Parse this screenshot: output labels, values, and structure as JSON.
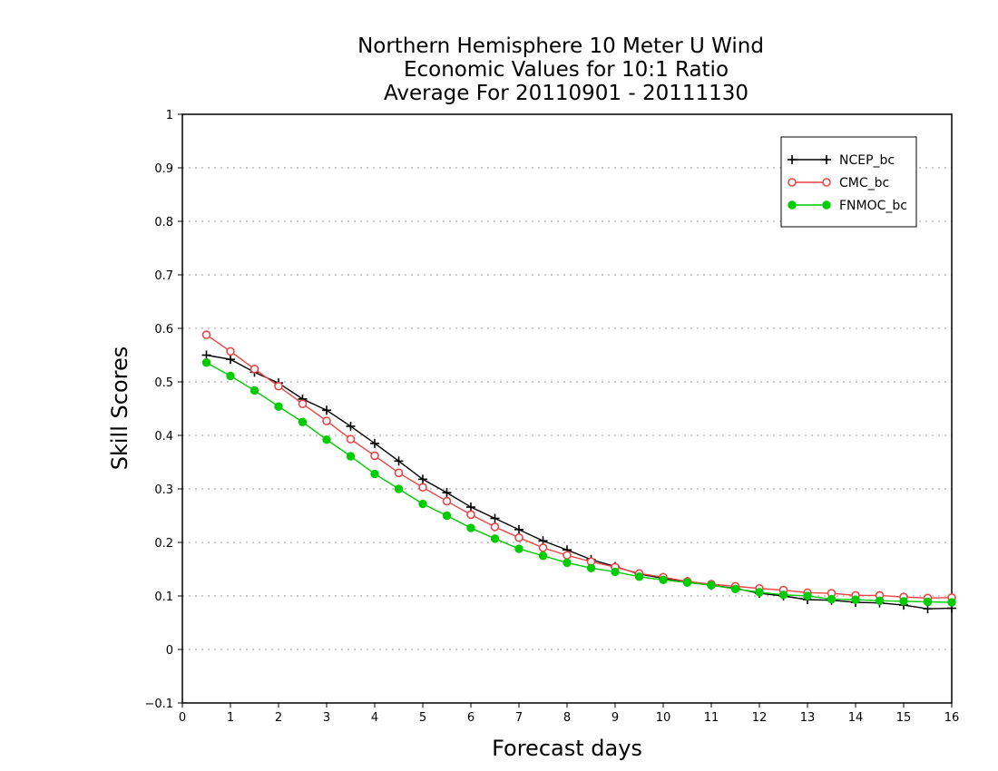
{
  "chart_data": {
    "type": "line",
    "title_lines": [
      "Northern Hemisphere 10 Meter U Wind",
      "Economic Values for 10:1 Ratio",
      "Average For 20110901 - 20111130"
    ],
    "xlabel": "Forecast days",
    "ylabel": "Skill Scores",
    "xlim": [
      0,
      16
    ],
    "ylim": [
      -0.1,
      1
    ],
    "x_ticks": [
      "0",
      "1",
      "2",
      "3",
      "4",
      "5",
      "6",
      "7",
      "8",
      "9",
      "10",
      "11",
      "12",
      "13",
      "14",
      "15",
      "16"
    ],
    "y_ticks": [
      "−0.1",
      "0",
      "0.1",
      "0.2",
      "0.3",
      "0.4",
      "0.5",
      "0.6",
      "0.7",
      "0.8",
      "0.9",
      "1"
    ],
    "grid": "dotted horizontal",
    "legend_position": "top-right",
    "x": [
      0.5,
      1,
      1.5,
      2,
      2.5,
      3,
      3.5,
      4,
      4.5,
      5,
      5.5,
      6,
      6.5,
      7,
      7.5,
      8,
      8.5,
      9,
      9.5,
      10,
      10.5,
      11,
      11.5,
      12,
      12.5,
      13,
      13.5,
      14,
      14.5,
      15,
      15.5,
      16
    ],
    "series": [
      {
        "name": "NCEP_bc",
        "color": "#000000",
        "marker": "plus",
        "values": [
          0.55,
          0.542,
          0.518,
          0.498,
          0.468,
          0.447,
          0.417,
          0.385,
          0.352,
          0.318,
          0.293,
          0.266,
          0.245,
          0.224,
          0.203,
          0.186,
          0.168,
          0.155,
          0.141,
          0.133,
          0.127,
          0.12,
          0.114,
          0.105,
          0.1,
          0.093,
          0.092,
          0.088,
          0.087,
          0.083,
          0.076,
          0.077
        ]
      },
      {
        "name": "CMC_bc",
        "color": "#ee4444",
        "marker": "open-circle",
        "values": [
          0.588,
          0.557,
          0.524,
          0.492,
          0.459,
          0.427,
          0.393,
          0.362,
          0.33,
          0.303,
          0.277,
          0.252,
          0.229,
          0.209,
          0.19,
          0.176,
          0.164,
          0.154,
          0.142,
          0.135,
          0.127,
          0.122,
          0.118,
          0.114,
          0.111,
          0.106,
          0.105,
          0.101,
          0.101,
          0.098,
          0.096,
          0.097
        ]
      },
      {
        "name": "FNMOC_bc",
        "color": "#00cc00",
        "marker": "filled-circle",
        "values": [
          0.536,
          0.511,
          0.484,
          0.454,
          0.425,
          0.392,
          0.361,
          0.328,
          0.3,
          0.272,
          0.25,
          0.227,
          0.207,
          0.188,
          0.175,
          0.162,
          0.152,
          0.145,
          0.136,
          0.13,
          0.125,
          0.12,
          0.113,
          0.107,
          0.102,
          0.1,
          0.094,
          0.093,
          0.091,
          0.09,
          0.089,
          0.088
        ]
      }
    ]
  }
}
